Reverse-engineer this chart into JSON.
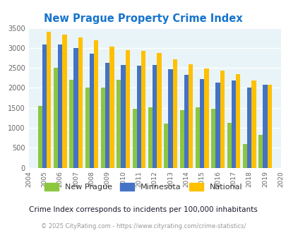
{
  "title": "New Prague Property Crime Index",
  "years": [
    2005,
    2006,
    2007,
    2008,
    2009,
    2010,
    2011,
    2012,
    2013,
    2014,
    2015,
    2016,
    2017,
    2018,
    2019
  ],
  "x_ticks_extra": [
    2004,
    2005,
    2006,
    2007,
    2008,
    2009,
    2010,
    2011,
    2012,
    2013,
    2014,
    2015,
    2016,
    2017,
    2018,
    2019,
    2020
  ],
  "new_prague": [
    1550,
    2500,
    2200,
    2000,
    2000,
    2200,
    1470,
    1520,
    1100,
    1450,
    1520,
    1480,
    1130,
    600,
    820
  ],
  "minnesota": [
    3080,
    3080,
    3000,
    2850,
    2630,
    2580,
    2560,
    2580,
    2460,
    2320,
    2220,
    2130,
    2190,
    2000,
    2070
  ],
  "national": [
    3410,
    3340,
    3260,
    3200,
    3040,
    2950,
    2920,
    2870,
    2710,
    2590,
    2480,
    2440,
    2350,
    2180,
    2080
  ],
  "new_prague_color": "#8DC63F",
  "minnesota_color": "#4472C4",
  "national_color": "#FFC000",
  "bg_color": "#E8F4F8",
  "grid_color": "#FFFFFF",
  "ylim": [
    0,
    3500
  ],
  "yticks": [
    0,
    500,
    1000,
    1500,
    2000,
    2500,
    3000,
    3500
  ],
  "subtitle": "Crime Index corresponds to incidents per 100,000 inhabitants",
  "footer": "© 2025 CityRating.com - https://www.cityrating.com/crime-statistics/",
  "title_color": "#1874CD",
  "subtitle_color": "#1A1A2E",
  "footer_color": "#999999",
  "legend_labels": [
    "New Prague",
    "Minnesota",
    "National"
  ]
}
